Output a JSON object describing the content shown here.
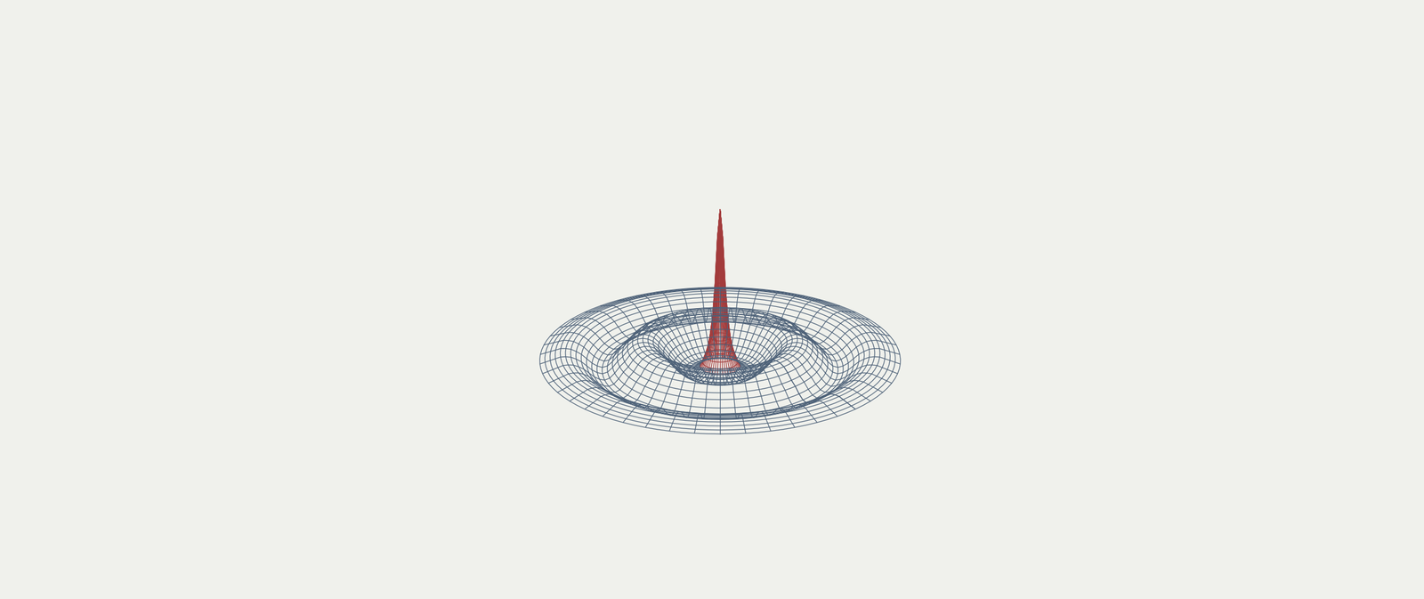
{
  "chart_data": {
    "type": "surface",
    "tick_labels": false,
    "grid": false,
    "series": [
      {
        "color": "#a33b3b",
        "r": [
          0.0,
          0.1,
          0.2,
          0.3,
          0.4,
          0.5,
          0.6,
          0.7,
          0.8
        ],
        "z": [
          1.0,
          0.82,
          0.5,
          0.28,
          0.15,
          0.07,
          0.02,
          -0.02,
          -0.05
        ]
      },
      {
        "color": "#4d6178",
        "r": [
          0.8,
          1.0,
          1.2,
          1.4,
          1.6,
          1.8,
          2.0,
          2.2,
          2.4,
          2.6,
          2.8,
          3.0,
          3.2,
          3.4,
          3.6,
          3.8,
          4.0,
          4.2,
          4.4,
          4.6,
          4.8,
          5.0,
          5.2,
          5.4,
          5.6,
          5.8,
          6.0,
          6.2,
          6.4,
          6.6,
          6.8,
          7.0
        ],
        "z": [
          -0.05,
          -0.07,
          -0.08,
          -0.08,
          -0.06,
          -0.03,
          0.01,
          0.05,
          0.09,
          0.12,
          0.135,
          0.14,
          0.135,
          0.12,
          0.09,
          0.05,
          0.02,
          -0.02,
          -0.05,
          -0.06,
          -0.05,
          -0.03,
          0.0,
          0.03,
          0.05,
          0.065,
          0.07,
          0.07,
          0.06,
          0.05,
          0.04,
          0.03
        ]
      }
    ]
  }
}
